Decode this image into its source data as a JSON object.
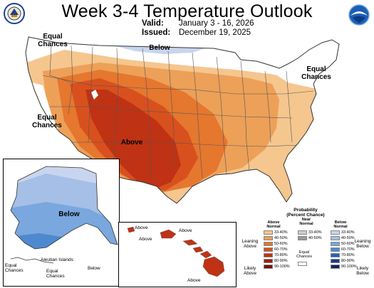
{
  "header": {
    "title": "Week 3-4 Temperature Outlook",
    "valid_label": "Valid:",
    "valid_value": "January 3 - 16, 2026",
    "issued_label": "Issued:",
    "issued_value": "December 19, 2025"
  },
  "logos": {
    "left": "department-of-commerce-seal",
    "right": "noaa-logo"
  },
  "conus": {
    "labels": {
      "nw_equal": "Equal\nChances",
      "north_below": "Below",
      "ne_equal": "Equal\nChances",
      "west_equal": "Equal\nChances",
      "sw_above": "Above"
    }
  },
  "alaska": {
    "label_below": "Below",
    "label_aleutian": "Aleutian Islands",
    "label_equal_left": "Equal\nChances",
    "label_equal_mid": "Equal\nChances",
    "label_below_small": "Below"
  },
  "hawaii": {
    "label_above_1": "Above",
    "label_above_2": "Above",
    "label_above_3": "Above",
    "label_above_4": "Above"
  },
  "legend": {
    "title": "Probability\n(Percent Chance)",
    "above_header": "Above\nNormal",
    "near_header": "Near\nNormal",
    "below_header": "Below\nNormal",
    "above": [
      {
        "label": "33-40%",
        "color": "#f5c68e"
      },
      {
        "label": "40-50%",
        "color": "#eda058"
      },
      {
        "label": "50-60%",
        "color": "#e5772f"
      },
      {
        "label": "60-70%",
        "color": "#d8501e"
      },
      {
        "label": "70-80%",
        "color": "#bf3214"
      },
      {
        "label": "80-90%",
        "color": "#9e1f0c"
      },
      {
        "label": "90-100%",
        "color": "#781206"
      }
    ],
    "near": [
      {
        "label": "33-40%",
        "color": "#cccccc"
      },
      {
        "label": "40-50%",
        "color": "#999999"
      }
    ],
    "below": [
      {
        "label": "33-40%",
        "color": "#c9d5ee"
      },
      {
        "label": "40-50%",
        "color": "#a5bfe6"
      },
      {
        "label": "50-60%",
        "color": "#7aa7dd"
      },
      {
        "label": "60-70%",
        "color": "#4e89cf"
      },
      {
        "label": "70-80%",
        "color": "#2a5fb0"
      },
      {
        "label": "80-90%",
        "color": "#1c3a8b"
      },
      {
        "label": "90-100%",
        "color": "#14235e"
      }
    ],
    "equal_label": "Equal\nChances",
    "leaning_above": "Leaning\nAbove",
    "likely_above": "Likely\nAbove",
    "leaning_below": "Leaning\nBelow",
    "likely_below": "Likely\nBelow"
  }
}
